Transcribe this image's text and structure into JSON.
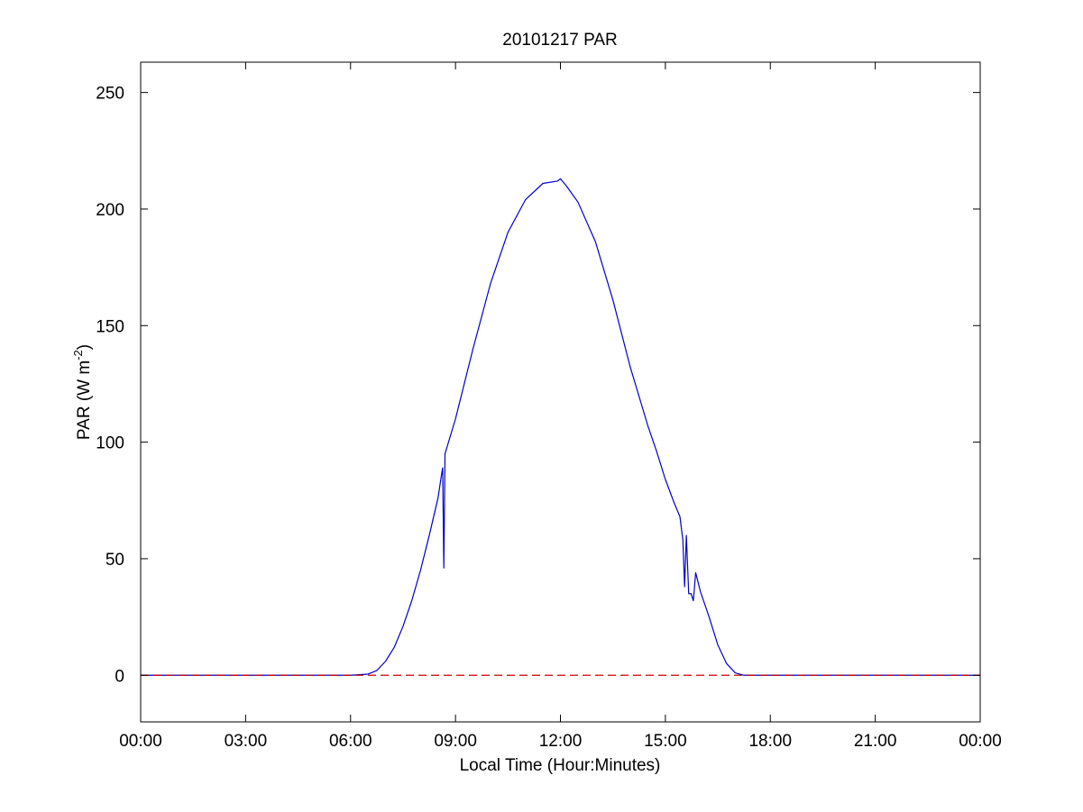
{
  "chart_data": {
    "type": "line",
    "title": "20101217 PAR",
    "xlabel": "Local Time (Hour:Minutes)",
    "ylabel": {
      "main": "PAR (W m",
      "superscript": "-2",
      "close": ")"
    },
    "xlim_hours": [
      0,
      24
    ],
    "ylim": [
      -20,
      263
    ],
    "x_tick_values_hours": [
      0,
      3,
      6,
      9,
      12,
      15,
      18,
      21,
      24
    ],
    "x_tick_labels": [
      "00:00",
      "03:00",
      "06:00",
      "09:00",
      "12:00",
      "15:00",
      "18:00",
      "21:00",
      "00:00"
    ],
    "y_ticks": [
      0,
      50,
      100,
      150,
      200,
      250
    ],
    "y_tick_labels": [
      "0",
      "50",
      "100",
      "150",
      "200",
      "250"
    ],
    "grid": false,
    "series": [
      {
        "color": "#0000cc",
        "style": "solid",
        "x": [
          "00:00",
          "06:00",
          "06:30",
          "06:45",
          "07:00",
          "07:15",
          "07:30",
          "07:45",
          "08:00",
          "08:15",
          "08:30",
          "08:36",
          "08:38",
          "08:40",
          "08:42",
          "09:00",
          "09:30",
          "10:00",
          "10:30",
          "11:00",
          "11:30",
          "11:55",
          "12:00",
          "12:10",
          "12:30",
          "13:00",
          "13:30",
          "14:00",
          "14:30",
          "14:45",
          "15:00",
          "15:15",
          "15:25",
          "15:30",
          "15:33",
          "15:36",
          "15:40",
          "15:44",
          "15:48",
          "15:52",
          "15:56",
          "16:00",
          "16:15",
          "16:30",
          "16:45",
          "17:00",
          "17:15",
          "17:30",
          "18:00",
          "21:00",
          "24:00"
        ],
        "y": [
          0,
          0,
          0.5,
          2,
          6,
          12,
          21,
          32,
          45,
          60,
          76,
          86,
          89,
          46,
          95,
          110,
          140,
          168,
          190,
          204,
          211,
          212,
          213,
          210,
          203,
          186,
          161,
          132,
          107,
          96,
          84,
          74,
          68,
          58,
          38,
          60,
          35,
          35,
          32,
          44,
          40,
          36,
          25,
          13,
          5,
          1,
          0,
          0,
          0,
          0,
          0
        ]
      },
      {
        "color": "#cc0000",
        "style": "dashed",
        "x": [
          "00:00",
          "24:00"
        ],
        "y": [
          0,
          0
        ]
      }
    ]
  }
}
